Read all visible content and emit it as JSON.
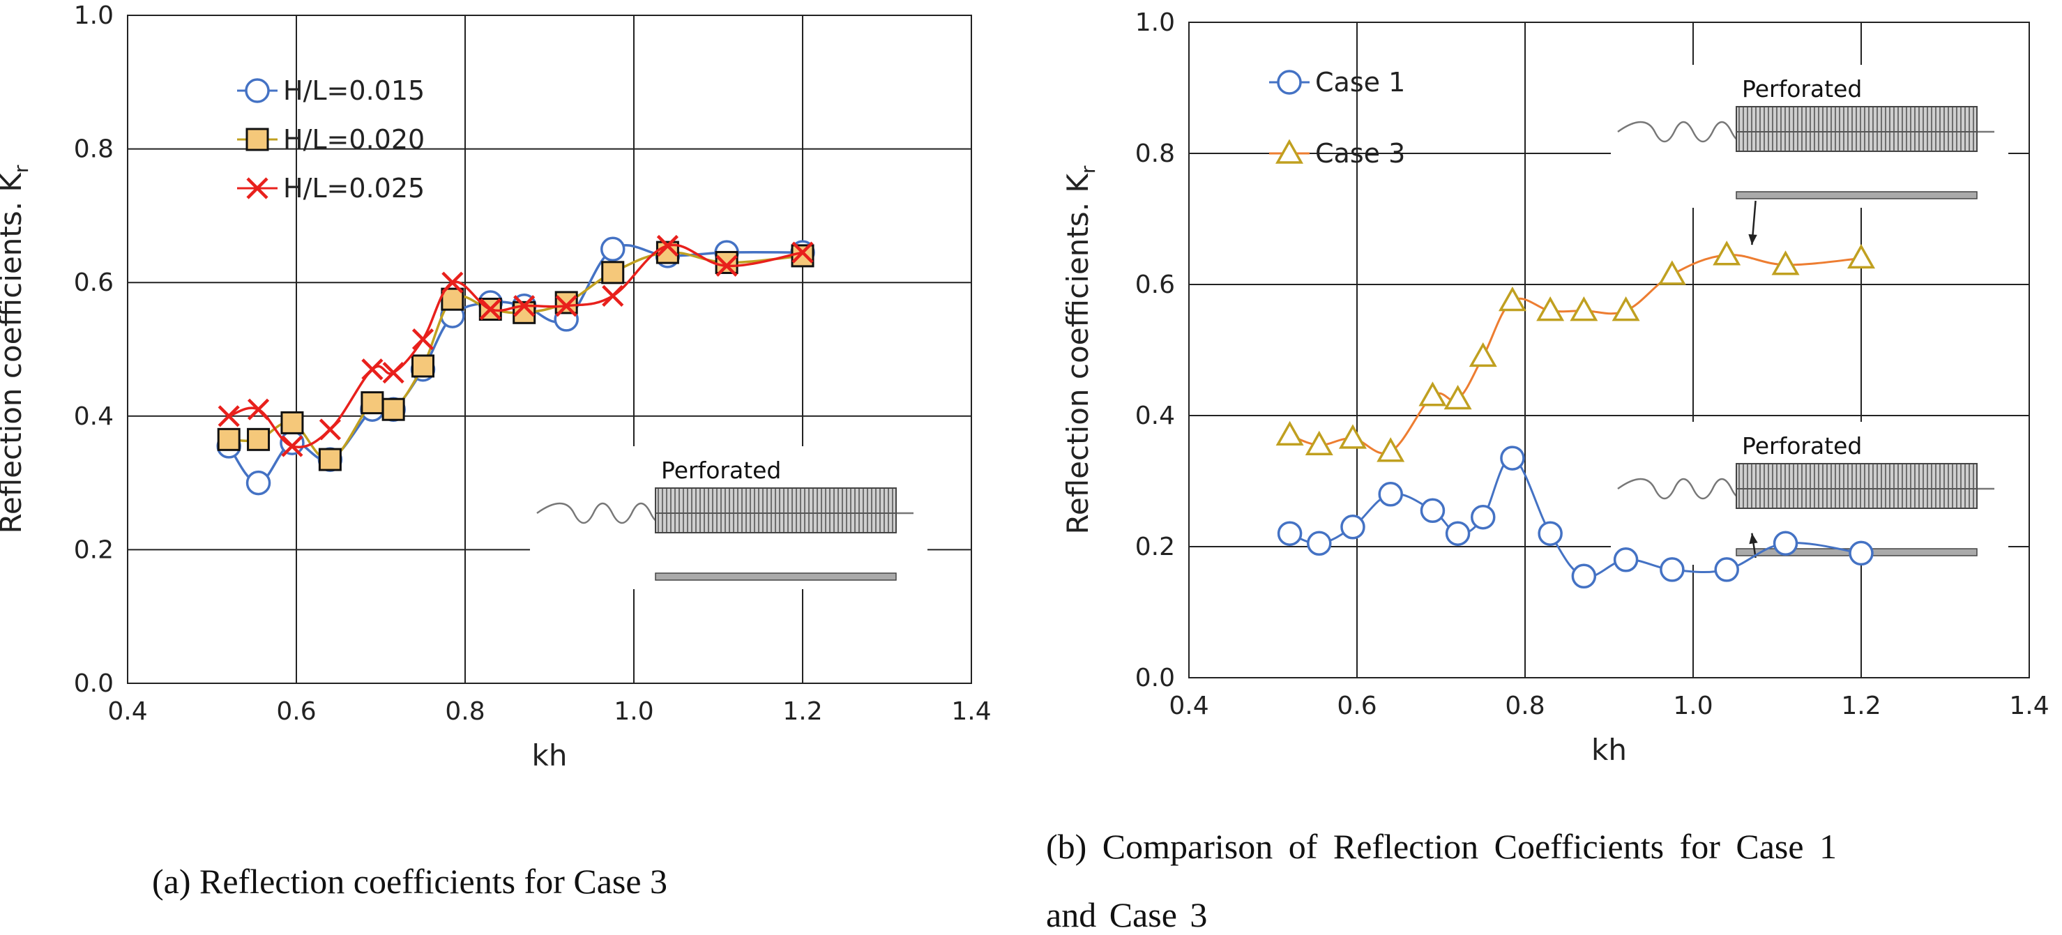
{
  "chart_data": [
    {
      "type": "line",
      "panel_caption": "(a) Reflection coefficients for Case 3",
      "xlabel": "kh",
      "ylabel_main": "Reflection coefficients. K",
      "ylabel_sub": "r",
      "xlim": [
        0.4,
        1.4
      ],
      "ylim": [
        0.0,
        1.0
      ],
      "xticks": [
        0.4,
        0.6,
        0.8,
        1.0,
        1.2,
        1.4
      ],
      "yticks": [
        0.0,
        0.2,
        0.4,
        0.6,
        0.8,
        1.0
      ],
      "xtick_labels": [
        "0.4",
        "0.6",
        "0.8",
        "1.0",
        "1.2",
        "1.4"
      ],
      "ytick_labels": [
        "0.0",
        "0.2",
        "0.4",
        "0.6",
        "0.8",
        "1.0"
      ],
      "grid": true,
      "legend_position": "top-left",
      "inset_label": "Perforated",
      "series": [
        {
          "name": "H/L=0.015",
          "color": "#4472C4",
          "marker": "circle",
          "x": [
            0.52,
            0.555,
            0.595,
            0.64,
            0.69,
            0.715,
            0.75,
            0.785,
            0.83,
            0.87,
            0.92,
            0.975,
            1.04,
            1.11,
            1.2
          ],
          "y": [
            0.355,
            0.3,
            0.36,
            0.335,
            0.41,
            0.41,
            0.47,
            0.55,
            0.57,
            0.565,
            0.545,
            0.65,
            0.64,
            0.645,
            0.645
          ]
        },
        {
          "name": "H/L=0.020",
          "color": "#C0A020",
          "fill": "#F5C87A",
          "marker": "square",
          "x": [
            0.52,
            0.555,
            0.595,
            0.64,
            0.69,
            0.715,
            0.75,
            0.785,
            0.83,
            0.87,
            0.92,
            0.975,
            1.04,
            1.11,
            1.2
          ],
          "y": [
            0.365,
            0.365,
            0.39,
            0.335,
            0.42,
            0.41,
            0.475,
            0.575,
            0.56,
            0.555,
            0.57,
            0.615,
            0.645,
            0.63,
            0.64
          ]
        },
        {
          "name": "H/L=0.025",
          "color": "#E8201C",
          "marker": "x",
          "x": [
            0.52,
            0.555,
            0.595,
            0.64,
            0.69,
            0.715,
            0.75,
            0.785,
            0.83,
            0.87,
            0.92,
            0.975,
            1.04,
            1.11,
            1.2
          ],
          "y": [
            0.4,
            0.41,
            0.355,
            0.38,
            0.47,
            0.465,
            0.515,
            0.6,
            0.56,
            0.565,
            0.565,
            0.58,
            0.655,
            0.625,
            0.645
          ]
        }
      ]
    },
    {
      "type": "line",
      "panel_caption_line1": "(b) Comparison of Reflection Coefficients for Case 1",
      "panel_caption_line2": "and Case 3",
      "xlabel": "kh",
      "ylabel_main": "Reflection coefficients. K",
      "ylabel_sub": "r",
      "xlim": [
        0.4,
        1.4
      ],
      "ylim": [
        0.0,
        1.0
      ],
      "xticks": [
        0.4,
        0.6,
        0.8,
        1.0,
        1.2,
        1.4
      ],
      "yticks": [
        0.0,
        0.2,
        0.4,
        0.6,
        0.8,
        1.0
      ],
      "xtick_labels": [
        "0.4",
        "0.6",
        "0.8",
        "1.0",
        "1.2",
        "1.4"
      ],
      "ytick_labels": [
        "0.0",
        "0.2",
        "0.4",
        "0.6",
        "0.8",
        "1.0"
      ],
      "grid": true,
      "legend_position": "top-left",
      "inset_label_top": "Perforated",
      "inset_label_bottom": "Perforated",
      "series": [
        {
          "name": "Case 1",
          "color": "#4472C4",
          "marker": "circle",
          "x": [
            0.52,
            0.555,
            0.595,
            0.64,
            0.69,
            0.72,
            0.75,
            0.785,
            0.83,
            0.87,
            0.92,
            0.975,
            1.04,
            1.11,
            1.2
          ],
          "y": [
            0.22,
            0.205,
            0.23,
            0.28,
            0.255,
            0.22,
            0.245,
            0.335,
            0.22,
            0.155,
            0.18,
            0.165,
            0.165,
            0.205,
            0.19
          ]
        },
        {
          "name": "Case 3",
          "color": "#ED7D31",
          "marker_color": "#C0A020",
          "marker": "triangle",
          "x": [
            0.52,
            0.555,
            0.595,
            0.64,
            0.69,
            0.72,
            0.75,
            0.785,
            0.83,
            0.87,
            0.92,
            0.975,
            1.04,
            1.11,
            1.2
          ],
          "y": [
            0.37,
            0.355,
            0.365,
            0.345,
            0.43,
            0.425,
            0.49,
            0.575,
            0.56,
            0.56,
            0.56,
            0.615,
            0.645,
            0.63,
            0.64
          ]
        }
      ]
    }
  ]
}
